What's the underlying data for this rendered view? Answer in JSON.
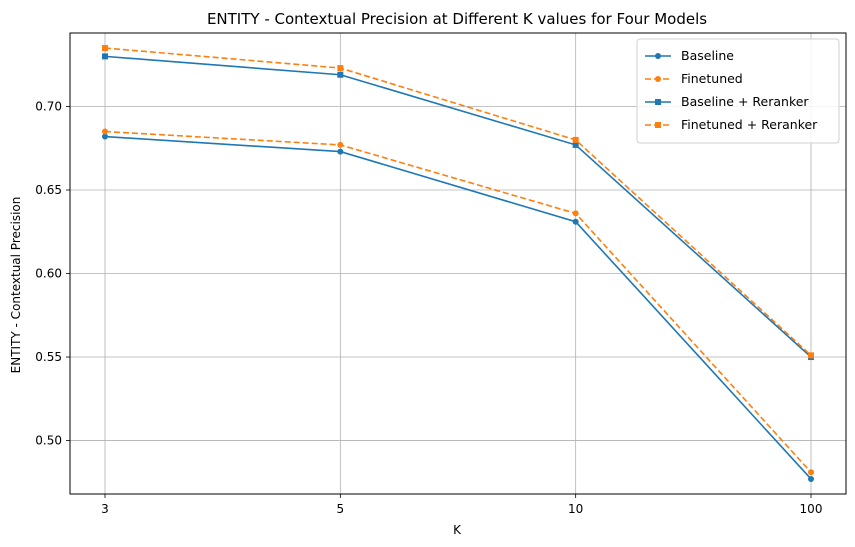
{
  "chart_data": {
    "type": "line",
    "title": "ENTITY - Contextual Precision at Different K values for Four Models",
    "xlabel": "K",
    "ylabel": "ENTITY - Contextual Precision",
    "categories": [
      "3",
      "5",
      "10",
      "100"
    ],
    "ylim": [
      0.468,
      0.744
    ],
    "yticks": [
      0.5,
      0.55,
      0.6,
      0.65,
      0.7
    ],
    "ytick_labels": [
      "0.50",
      "0.55",
      "0.60",
      "0.65",
      "0.70"
    ],
    "grid": true,
    "legend_position": "top-right",
    "series": [
      {
        "name": "Baseline",
        "values": [
          0.682,
          0.673,
          0.631,
          0.477
        ],
        "color": "#1f77b4",
        "line_style": "solid",
        "marker": "circle"
      },
      {
        "name": "Finetuned",
        "values": [
          0.685,
          0.677,
          0.636,
          0.481
        ],
        "color": "#ff7f0e",
        "line_style": "dashed",
        "marker": "circle"
      },
      {
        "name": "Baseline + Reranker",
        "values": [
          0.73,
          0.719,
          0.677,
          0.55
        ],
        "color": "#1f77b4",
        "line_style": "solid",
        "marker": "square"
      },
      {
        "name": "Finetuned + Reranker",
        "values": [
          0.735,
          0.723,
          0.68,
          0.551
        ],
        "color": "#ff7f0e",
        "line_style": "dashed",
        "marker": "square"
      }
    ]
  }
}
